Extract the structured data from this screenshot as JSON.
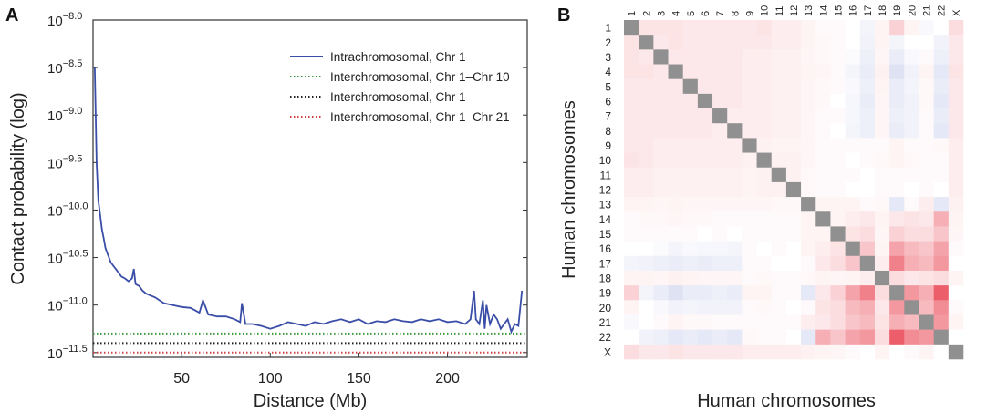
{
  "panels": {
    "a": {
      "letter": "A"
    },
    "b": {
      "letter": "B"
    }
  },
  "chart_data": [
    {
      "type": "line",
      "title": "",
      "xlabel": "Distance (Mb)",
      "ylabel": "Contact probability (log)",
      "xlim": [
        0,
        245
      ],
      "ylim": [
        -11.55,
        -8.0
      ],
      "x_ticks": [
        50,
        100,
        150,
        200
      ],
      "y_ticks": [
        {
          "value": -8.0,
          "label": "10",
          "exp": "−8.0"
        },
        {
          "value": -8.5,
          "label": "10",
          "exp": "−8.5"
        },
        {
          "value": -9.0,
          "label": "10",
          "exp": "−9.0"
        },
        {
          "value": -9.5,
          "label": "10",
          "exp": "−9.5"
        },
        {
          "value": -10.0,
          "label": "10",
          "exp": "−10.0"
        },
        {
          "value": -10.5,
          "label": "10",
          "exp": "−10.5"
        },
        {
          "value": -11.0,
          "label": "10",
          "exp": "−11.0"
        },
        {
          "value": -11.5,
          "label": "10",
          "exp": "−11.5"
        }
      ],
      "legend_position": "top-right",
      "series": [
        {
          "name": "Intrachromosomal, Chr 1",
          "style": "solid",
          "color": "#3a4ea8",
          "x": [
            1,
            2,
            3,
            4,
            5,
            6,
            7,
            8,
            9,
            10,
            12,
            14,
            16,
            18,
            20,
            22,
            23,
            24,
            26,
            28,
            30,
            35,
            40,
            45,
            50,
            55,
            60,
            62,
            65,
            70,
            75,
            80,
            83,
            84,
            86,
            90,
            95,
            100,
            105,
            110,
            115,
            120,
            125,
            130,
            135,
            140,
            145,
            150,
            155,
            160,
            165,
            170,
            175,
            180,
            185,
            190,
            195,
            200,
            205,
            210,
            213,
            215,
            216,
            218,
            220,
            221,
            222,
            224,
            226,
            228,
            230,
            232,
            234,
            236,
            238,
            240,
            242
          ],
          "y": [
            -8.5,
            -9.5,
            -9.9,
            -10.05,
            -10.2,
            -10.3,
            -10.4,
            -10.45,
            -10.5,
            -10.55,
            -10.6,
            -10.65,
            -10.7,
            -10.72,
            -10.75,
            -10.72,
            -10.62,
            -10.78,
            -10.8,
            -10.85,
            -10.88,
            -10.92,
            -10.98,
            -11.0,
            -11.02,
            -11.03,
            -11.08,
            -10.95,
            -11.1,
            -11.12,
            -11.12,
            -11.15,
            -11.18,
            -10.98,
            -11.2,
            -11.2,
            -11.22,
            -11.25,
            -11.22,
            -11.18,
            -11.2,
            -11.22,
            -11.18,
            -11.2,
            -11.17,
            -11.15,
            -11.18,
            -11.15,
            -11.2,
            -11.17,
            -11.18,
            -11.15,
            -11.17,
            -11.18,
            -11.15,
            -11.17,
            -11.15,
            -11.18,
            -11.17,
            -11.2,
            -11.15,
            -10.85,
            -11.15,
            -11.2,
            -10.95,
            -11.25,
            -11.0,
            -11.2,
            -11.1,
            -11.15,
            -11.25,
            -11.2,
            -11.15,
            -11.28,
            -11.2,
            -11.22,
            -10.85
          ]
        },
        {
          "name": "Interchromosomal, Chr 1–Chr 10",
          "style": "dotted",
          "color": "#3a9a3a",
          "x": [
            0,
            245
          ],
          "y": [
            -11.3,
            -11.3
          ]
        },
        {
          "name": "Interchromosomal, Chr 1",
          "style": "dotted",
          "color": "#222222",
          "x": [
            0,
            245
          ],
          "y": [
            -11.4,
            -11.4
          ]
        },
        {
          "name": "Interchromosomal, Chr 1–Chr 21",
          "style": "dotted",
          "color": "#d04040",
          "x": [
            0,
            245
          ],
          "y": [
            -11.5,
            -11.5
          ]
        }
      ]
    },
    {
      "type": "heatmap",
      "title": "",
      "xlabel": "Human chromosomes",
      "ylabel": "Human chromosomes",
      "labels": [
        "1",
        "2",
        "3",
        "4",
        "5",
        "6",
        "7",
        "8",
        "9",
        "10",
        "11",
        "12",
        "13",
        "14",
        "15",
        "16",
        "17",
        "18",
        "19",
        "20",
        "21",
        "22",
        "X"
      ],
      "color_scale": {
        "negative": "#2a3fb0",
        "neutral": "#ffffff",
        "positive": "#e41a2a",
        "diagonal": "#909090"
      },
      "matrix": [
        [
          null,
          0.12,
          0.12,
          0.12,
          0.1,
          0.1,
          0.1,
          0.1,
          0.1,
          0.12,
          0.08,
          0.08,
          0.05,
          0.02,
          0.02,
          0.0,
          -0.05,
          0.05,
          0.2,
          0.05,
          -0.03,
          0.0,
          0.15
        ],
        [
          0.12,
          null,
          0.1,
          0.12,
          0.1,
          0.1,
          0.1,
          0.1,
          0.1,
          0.1,
          0.08,
          0.08,
          0.05,
          0.03,
          0.02,
          0.0,
          -0.06,
          0.05,
          -0.05,
          0.0,
          0.0,
          -0.06,
          0.1
        ],
        [
          0.12,
          0.1,
          null,
          0.1,
          0.1,
          0.1,
          0.1,
          0.1,
          0.08,
          0.08,
          0.06,
          0.06,
          0.04,
          0.03,
          0.02,
          -0.02,
          -0.08,
          0.04,
          -0.1,
          -0.03,
          0.02,
          -0.08,
          0.1
        ],
        [
          0.12,
          0.12,
          0.1,
          null,
          0.1,
          0.1,
          0.1,
          0.1,
          0.08,
          0.08,
          0.06,
          0.06,
          0.05,
          0.04,
          0.02,
          -0.05,
          -0.1,
          0.06,
          -0.15,
          -0.06,
          0.05,
          -0.12,
          0.12
        ],
        [
          0.1,
          0.1,
          0.1,
          0.1,
          null,
          0.1,
          0.1,
          0.1,
          0.08,
          0.08,
          0.06,
          0.06,
          0.04,
          0.03,
          0.02,
          -0.03,
          -0.08,
          0.05,
          -0.1,
          -0.05,
          0.03,
          -0.1,
          0.1
        ],
        [
          0.1,
          0.1,
          0.1,
          0.1,
          0.1,
          null,
          0.1,
          0.1,
          0.08,
          0.08,
          0.06,
          0.06,
          0.04,
          0.03,
          0.0,
          -0.04,
          -0.1,
          0.04,
          -0.1,
          -0.06,
          0.03,
          -0.12,
          0.1
        ],
        [
          0.1,
          0.1,
          0.1,
          0.1,
          0.1,
          0.1,
          null,
          0.08,
          0.08,
          0.08,
          0.06,
          0.06,
          0.04,
          0.02,
          0.02,
          -0.04,
          -0.08,
          0.04,
          -0.08,
          -0.06,
          0.02,
          -0.1,
          0.1
        ],
        [
          0.1,
          0.1,
          0.1,
          0.1,
          0.1,
          0.1,
          0.08,
          null,
          0.08,
          0.08,
          0.06,
          0.06,
          0.04,
          0.02,
          0.0,
          -0.05,
          -0.08,
          0.04,
          -0.1,
          -0.06,
          0.02,
          -0.12,
          0.1
        ],
        [
          0.1,
          0.1,
          0.08,
          0.08,
          0.08,
          0.08,
          0.08,
          0.08,
          null,
          0.06,
          0.05,
          0.05,
          0.04,
          0.02,
          0.02,
          0.02,
          0.02,
          0.02,
          0.05,
          0.02,
          0.02,
          0.03,
          0.08
        ],
        [
          0.12,
          0.1,
          0.08,
          0.08,
          0.08,
          0.08,
          0.08,
          0.08,
          0.06,
          null,
          0.06,
          0.06,
          0.04,
          0.02,
          0.02,
          0.0,
          0.02,
          0.03,
          0.05,
          0.03,
          0.02,
          0.02,
          0.08
        ],
        [
          0.08,
          0.08,
          0.06,
          0.06,
          0.06,
          0.06,
          0.06,
          0.06,
          0.05,
          0.06,
          null,
          0.06,
          0.03,
          0.02,
          0.02,
          0.02,
          0.0,
          0.02,
          0.02,
          0.02,
          0.02,
          0.02,
          0.08
        ],
        [
          0.08,
          0.08,
          0.06,
          0.06,
          0.06,
          0.06,
          0.06,
          0.06,
          0.05,
          0.06,
          0.06,
          null,
          0.03,
          0.02,
          0.02,
          0.0,
          0.0,
          0.02,
          0.02,
          0.0,
          0.02,
          0.0,
          0.08
        ],
        [
          0.05,
          0.05,
          0.04,
          0.05,
          0.04,
          0.04,
          0.04,
          0.04,
          0.04,
          0.04,
          0.03,
          0.03,
          null,
          0.05,
          0.05,
          0.05,
          0.02,
          0.03,
          -0.12,
          0.02,
          0.08,
          -0.12,
          0.06
        ],
        [
          0.02,
          0.03,
          0.03,
          0.04,
          0.03,
          0.03,
          0.02,
          0.02,
          0.02,
          0.02,
          0.02,
          0.02,
          0.05,
          null,
          0.05,
          0.08,
          0.1,
          0.05,
          0.1,
          0.12,
          0.1,
          0.35,
          0.05
        ],
        [
          0.02,
          0.02,
          0.02,
          0.02,
          0.02,
          0.0,
          0.02,
          0.0,
          0.02,
          0.02,
          0.02,
          0.02,
          0.05,
          0.05,
          null,
          0.12,
          0.15,
          0.04,
          0.2,
          0.15,
          0.15,
          0.25,
          0.04
        ],
        [
          0.0,
          0.0,
          -0.02,
          -0.05,
          -0.03,
          -0.04,
          -0.04,
          -0.05,
          0.02,
          0.0,
          0.02,
          0.0,
          0.05,
          0.08,
          0.12,
          null,
          0.25,
          0.05,
          0.4,
          0.3,
          0.25,
          0.4,
          0.02
        ],
        [
          -0.05,
          -0.06,
          -0.08,
          -0.1,
          -0.08,
          -0.1,
          -0.08,
          -0.08,
          0.02,
          0.02,
          0.0,
          0.0,
          0.02,
          0.1,
          0.15,
          0.25,
          null,
          0.08,
          0.55,
          0.35,
          0.3,
          0.45,
          0.0
        ],
        [
          0.05,
          0.05,
          0.04,
          0.06,
          0.05,
          0.04,
          0.04,
          0.04,
          0.02,
          0.03,
          0.02,
          0.02,
          0.03,
          0.05,
          0.04,
          0.05,
          0.08,
          null,
          0.15,
          0.1,
          0.12,
          0.15,
          0.05
        ],
        [
          0.2,
          -0.05,
          -0.1,
          -0.15,
          -0.1,
          -0.1,
          -0.08,
          -0.1,
          0.05,
          0.05,
          0.02,
          0.02,
          -0.12,
          0.1,
          0.2,
          0.4,
          0.55,
          0.15,
          null,
          0.45,
          0.35,
          0.7,
          0.0
        ],
        [
          0.05,
          0.0,
          -0.03,
          -0.06,
          -0.05,
          -0.06,
          -0.06,
          -0.06,
          0.02,
          0.03,
          0.02,
          0.0,
          0.02,
          0.12,
          0.15,
          0.3,
          0.35,
          0.1,
          0.45,
          null,
          0.3,
          0.5,
          0.02
        ],
        [
          -0.03,
          0.0,
          0.02,
          0.05,
          0.03,
          0.03,
          0.02,
          0.02,
          0.02,
          0.02,
          0.02,
          0.02,
          0.08,
          0.1,
          0.15,
          0.25,
          0.3,
          0.12,
          0.35,
          0.3,
          null,
          0.45,
          0.05
        ],
        [
          0.0,
          -0.06,
          -0.08,
          -0.12,
          -0.1,
          -0.12,
          -0.1,
          -0.12,
          0.03,
          0.02,
          0.02,
          0.0,
          -0.12,
          0.35,
          0.25,
          0.4,
          0.45,
          0.15,
          0.7,
          0.5,
          0.45,
          null,
          0.0
        ],
        [
          0.15,
          0.1,
          0.1,
          0.12,
          0.1,
          0.1,
          0.1,
          0.1,
          0.08,
          0.08,
          0.08,
          0.08,
          0.06,
          0.05,
          0.04,
          0.02,
          0.0,
          0.05,
          0.0,
          0.02,
          0.05,
          0.0,
          null
        ]
      ]
    }
  ]
}
